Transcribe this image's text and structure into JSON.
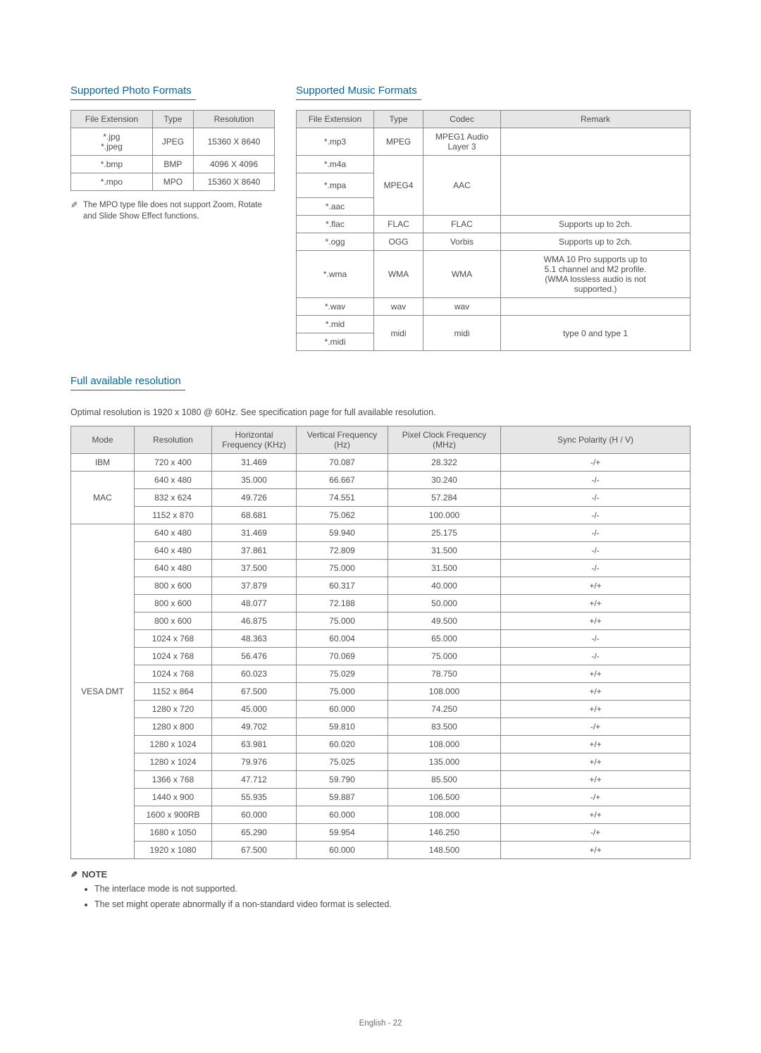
{
  "photo": {
    "heading": "Supported Photo Formats",
    "columns": [
      "File Extension",
      "Type",
      "Resolution"
    ],
    "rows": [
      {
        "ext": [
          "*.jpg",
          "*.jpeg"
        ],
        "type": "JPEG",
        "resolution": "15360 X 8640"
      },
      {
        "ext": [
          "*.bmp"
        ],
        "type": "BMP",
        "resolution": "4096 X 4096"
      },
      {
        "ext": [
          "*.mpo"
        ],
        "type": "MPO",
        "resolution": "15360 X 8640"
      }
    ],
    "note": "The MPO type file does not support Zoom, Rotate and Slide Show Effect functions."
  },
  "music": {
    "heading": "Supported Music Formats",
    "columns": [
      "File Extension",
      "Type",
      "Codec",
      "Remark"
    ],
    "rows": [
      {
        "ext": [
          "*.mp3"
        ],
        "type": "MPEG",
        "codec_lines": [
          "MPEG1 Audio",
          "Layer 3"
        ],
        "remark": ""
      },
      {
        "ext": [
          "*.m4a",
          "*.mpa",
          "*.aac"
        ],
        "type": "MPEG4",
        "codec": "AAC",
        "remark": ""
      },
      {
        "ext": [
          "*.flac"
        ],
        "type": "FLAC",
        "codec": "FLAC",
        "remark": "Supports up to 2ch."
      },
      {
        "ext": [
          "*.ogg"
        ],
        "type": "OGG",
        "codec": "Vorbis",
        "remark": "Supports up to 2ch."
      },
      {
        "ext": [
          "*.wma"
        ],
        "type": "WMA",
        "codec": "WMA",
        "remark_lines": [
          "WMA 10 Pro supports up to",
          "5.1 channel and M2 profile.",
          "(WMA lossless audio is not",
          "supported.)"
        ]
      },
      {
        "ext": [
          "*.wav"
        ],
        "type": "wav",
        "codec": "wav",
        "remark": ""
      },
      {
        "ext": [
          "*.mid",
          "*.midi"
        ],
        "type": "midi",
        "codec": "midi",
        "remark": "type 0 and type 1"
      }
    ]
  },
  "resolution": {
    "heading": "Full available resolution",
    "intro": "Optimal resolution is 1920 x 1080 @ 60Hz. See specification page for full available resolution.",
    "columns": [
      "Mode",
      "Resolution",
      "Horizontal Frequency (KHz)",
      "Vertical Frequency (Hz)",
      "Pixel Clock Frequency (MHz)",
      "Sync Polarity (H / V)"
    ],
    "groups": [
      {
        "mode": "IBM",
        "rows": [
          [
            "720 x 400",
            "31.469",
            "70.087",
            "28.322",
            "-/+"
          ]
        ]
      },
      {
        "mode": "MAC",
        "rows": [
          [
            "640 x 480",
            "35.000",
            "66.667",
            "30.240",
            "-/-"
          ],
          [
            "832 x 624",
            "49.726",
            "74.551",
            "57.284",
            "-/-"
          ],
          [
            "1152 x 870",
            "68.681",
            "75.062",
            "100.000",
            "-/-"
          ]
        ]
      },
      {
        "mode": "VESA DMT",
        "rows": [
          [
            "640 x 480",
            "31.469",
            "59.940",
            "25.175",
            "-/-"
          ],
          [
            "640 x 480",
            "37.861",
            "72.809",
            "31.500",
            "-/-"
          ],
          [
            "640 x 480",
            "37.500",
            "75.000",
            "31.500",
            "-/-"
          ],
          [
            "800 x 600",
            "37.879",
            "60.317",
            "40.000",
            "+/+"
          ],
          [
            "800 x 600",
            "48.077",
            "72.188",
            "50.000",
            "+/+"
          ],
          [
            "800 x 600",
            "46.875",
            "75.000",
            "49.500",
            "+/+"
          ],
          [
            "1024 x 768",
            "48.363",
            "60.004",
            "65.000",
            "-/-"
          ],
          [
            "1024 x 768",
            "56.476",
            "70.069",
            "75.000",
            "-/-"
          ],
          [
            "1024 x 768",
            "60.023",
            "75.029",
            "78.750",
            "+/+"
          ],
          [
            "1152 x 864",
            "67.500",
            "75.000",
            "108.000",
            "+/+"
          ],
          [
            "1280 x 720",
            "45.000",
            "60.000",
            "74.250",
            "+/+"
          ],
          [
            "1280 x 800",
            "49.702",
            "59.810",
            "83.500",
            "-/+"
          ],
          [
            "1280 x 1024",
            "63.981",
            "60.020",
            "108.000",
            "+/+"
          ],
          [
            "1280 x 1024",
            "79.976",
            "75.025",
            "135.000",
            "+/+"
          ],
          [
            "1366 x 768",
            "47.712",
            "59.790",
            "85.500",
            "+/+"
          ],
          [
            "1440 x 900",
            "55.935",
            "59.887",
            "106.500",
            "-/+"
          ],
          [
            "1600 x 900RB",
            "60.000",
            "60.000",
            "108.000",
            "+/+"
          ],
          [
            "1680 x 1050",
            "65.290",
            "59.954",
            "146.250",
            "-/+"
          ],
          [
            "1920 x 1080",
            "67.500",
            "60.000",
            "148.500",
            "+/+"
          ]
        ]
      }
    ]
  },
  "notes": {
    "heading": "NOTE",
    "items": [
      "The interlace mode is not supported.",
      "The set might operate abnormally if a non-standard video format is selected."
    ]
  },
  "footer": {
    "lang": "English",
    "page": "22"
  }
}
